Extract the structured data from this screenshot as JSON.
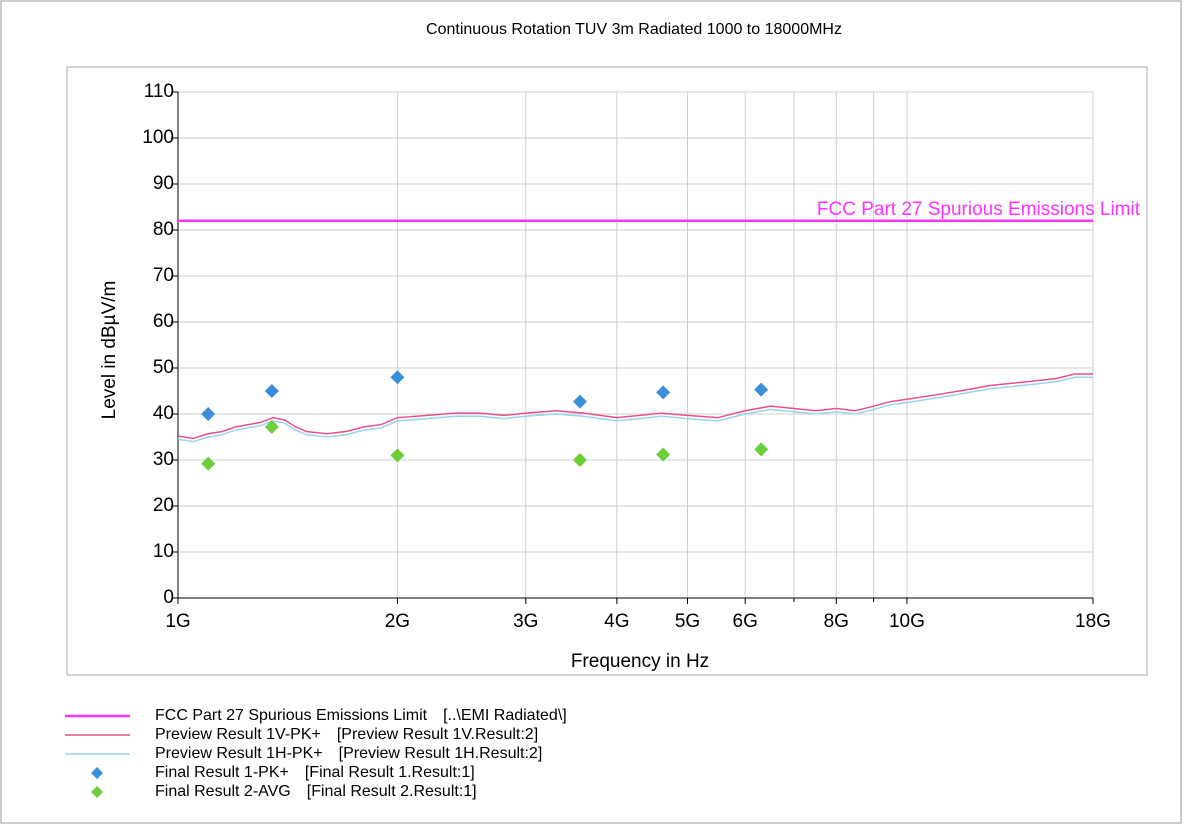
{
  "chart_data": {
    "type": "line",
    "title": "Continuous Rotation TUV 3m Radiated 1000 to 18000MHz",
    "x_label": "Frequency in Hz",
    "y_label": "Level in dBµV/m",
    "x_scale": "log",
    "xlim": [
      1000000000,
      18000000000
    ],
    "ylim": [
      0,
      110
    ],
    "xticks": [
      {
        "value": 1000000000,
        "label": "1G"
      },
      {
        "value": 2000000000,
        "label": "2G"
      },
      {
        "value": 3000000000,
        "label": "3G"
      },
      {
        "value": 4000000000,
        "label": "4G"
      },
      {
        "value": 5000000000,
        "label": "5G"
      },
      {
        "value": 6000000000,
        "label": "6G"
      },
      {
        "value": 8000000000,
        "label": "8G"
      },
      {
        "value": 10000000000,
        "label": "10G"
      },
      {
        "value": 18000000000,
        "label": "18G"
      }
    ],
    "xminor": [
      7000000000,
      9000000000
    ],
    "yticks": [
      0,
      10,
      20,
      30,
      40,
      50,
      60,
      70,
      80,
      90,
      100,
      110
    ],
    "grid": true,
    "series": [
      {
        "name": "FCC Part 27 Spurious Emissions Limit",
        "source": "[..\\EMI Radiated\\]",
        "color": "#ff33ff",
        "kind": "line",
        "label": "FCC Part 27 Spurious Emissions Limit",
        "x": [
          1000000000,
          18000000000
        ],
        "values": [
          82,
          82
        ]
      },
      {
        "name": "Preview Result 1V-PK+",
        "source": "[Preview Result 1V.Result:2]",
        "color": "#e8508a",
        "kind": "line",
        "x": [
          1000000000,
          1050000000,
          1100000000,
          1150000000,
          1200000000,
          1300000000,
          1350000000,
          1400000000,
          1450000000,
          1500000000,
          1600000000,
          1700000000,
          1800000000,
          1900000000,
          2000000000,
          2200000000,
          2400000000,
          2600000000,
          2800000000,
          3000000000,
          3300000000,
          3600000000,
          4000000000,
          4300000000,
          4600000000,
          5000000000,
          5500000000,
          6000000000,
          6500000000,
          7000000000,
          7500000000,
          8000000000,
          8500000000,
          9000000000,
          9500000000,
          10000000000,
          11000000000,
          12000000000,
          13000000000,
          14000000000,
          15000000000,
          16000000000,
          17000000000,
          18000000000
        ],
        "values": [
          35.2,
          34.7,
          35.7,
          36.2,
          37.2,
          38.2,
          39.2,
          38.7,
          37.2,
          36.2,
          35.7,
          36.2,
          37.2,
          37.7,
          39.2,
          39.7,
          40.2,
          40.2,
          39.7,
          40.2,
          40.7,
          40.2,
          39.2,
          39.7,
          40.2,
          39.7,
          39.2,
          40.7,
          41.7,
          41.2,
          40.7,
          41.2,
          40.7,
          41.7,
          42.7,
          43.2,
          44.2,
          45.2,
          46.2,
          46.7,
          47.2,
          47.7,
          48.7,
          48.7
        ]
      },
      {
        "name": "Preview Result 1H-PK+",
        "source": "[Preview Result 1H.Result:2]",
        "color": "#99d3f2",
        "kind": "line",
        "x": [
          1000000000,
          1050000000,
          1100000000,
          1150000000,
          1200000000,
          1300000000,
          1350000000,
          1400000000,
          1450000000,
          1500000000,
          1600000000,
          1700000000,
          1800000000,
          1900000000,
          2000000000,
          2200000000,
          2400000000,
          2600000000,
          2800000000,
          3000000000,
          3300000000,
          3600000000,
          4000000000,
          4300000000,
          4600000000,
          5000000000,
          5500000000,
          6000000000,
          6500000000,
          7000000000,
          7500000000,
          8000000000,
          8500000000,
          9000000000,
          9500000000,
          10000000000,
          11000000000,
          12000000000,
          13000000000,
          14000000000,
          15000000000,
          16000000000,
          17000000000,
          18000000000
        ],
        "values": [
          34.5,
          34,
          35,
          35.5,
          36.5,
          37.5,
          38.5,
          38,
          36.5,
          35.5,
          35,
          35.5,
          36.5,
          37,
          38.5,
          39,
          39.5,
          39.5,
          39,
          39.5,
          40,
          39.5,
          38.5,
          39,
          39.5,
          39,
          38.5,
          40,
          41,
          40.5,
          40,
          40.5,
          40,
          41,
          42,
          42.5,
          43.5,
          44.5,
          45.5,
          46,
          46.5,
          47,
          48,
          48
        ]
      },
      {
        "name": "Final Result 1-PK+",
        "source": "[Final Result 1.Result:1]",
        "color": "#3a8fd9",
        "kind": "scatter",
        "x": [
          1100000000,
          1345000000,
          2000000000,
          3560000000,
          4630000000,
          6310000000
        ],
        "values": [
          40,
          45,
          48,
          42.7,
          44.7,
          45.3
        ]
      },
      {
        "name": "Final Result 2-AVG",
        "source": "[Final Result 2.Result:1]",
        "color": "#6ccf3a",
        "kind": "scatter",
        "x": [
          1100000000,
          1345000000,
          2000000000,
          3560000000,
          4630000000,
          6310000000
        ],
        "values": [
          29.2,
          37.2,
          31,
          30,
          31.2,
          32.3
        ]
      }
    ]
  }
}
